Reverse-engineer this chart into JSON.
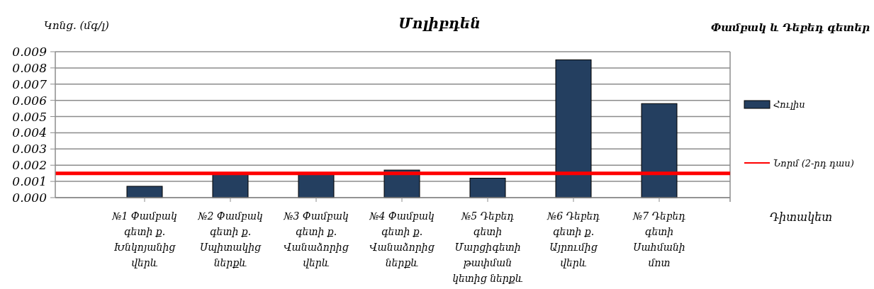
{
  "chart_data": {
    "type": "bar",
    "title": "Մոլիբդեն",
    "subtitle": "Փամբակ և Դեբեդ գետեր",
    "ylabel": "Կոնց. (մգ/լ)",
    "xlabel": "Դիտակետ",
    "categories": [
      "№1 Փամբակ գետի ք. Խնկոյանից վերև",
      "№2 Փամբակ գետի ք. Սպիտակից ներքև",
      "№3 Փամբակ գետի ք. Վանաձորից վերև",
      "№4 Փամբակ գետի ք. Վանաձորից ներքև",
      "№5 Դեբեդ գետի Մարցիգետի թափման կետից ներքև",
      "№6 Դեբեդ գետի ք. Այրումից վերև",
      "№7 Դեբեդ գետի Սահմանի մոտ"
    ],
    "series": [
      {
        "name": "Հուլիս",
        "color": "#243f60",
        "values": [
          0.0007,
          0.0015,
          0.0015,
          0.0017,
          0.0012,
          0.0085,
          0.0058
        ]
      }
    ],
    "ylim": [
      0,
      0.009
    ],
    "yticks": [
      {
        "value": 0,
        "label": "0.000"
      },
      0.001,
      0.002,
      0.003,
      0.004,
      0.005,
      0.006,
      0.007,
      0.008,
      0.009
    ],
    "ref_lines": [
      {
        "axis": "y",
        "value": 0.0015,
        "label": "Նորմ (2-րդ դաս)",
        "color": "#ff0000"
      }
    ],
    "grid": "y",
    "legend": "right"
  }
}
